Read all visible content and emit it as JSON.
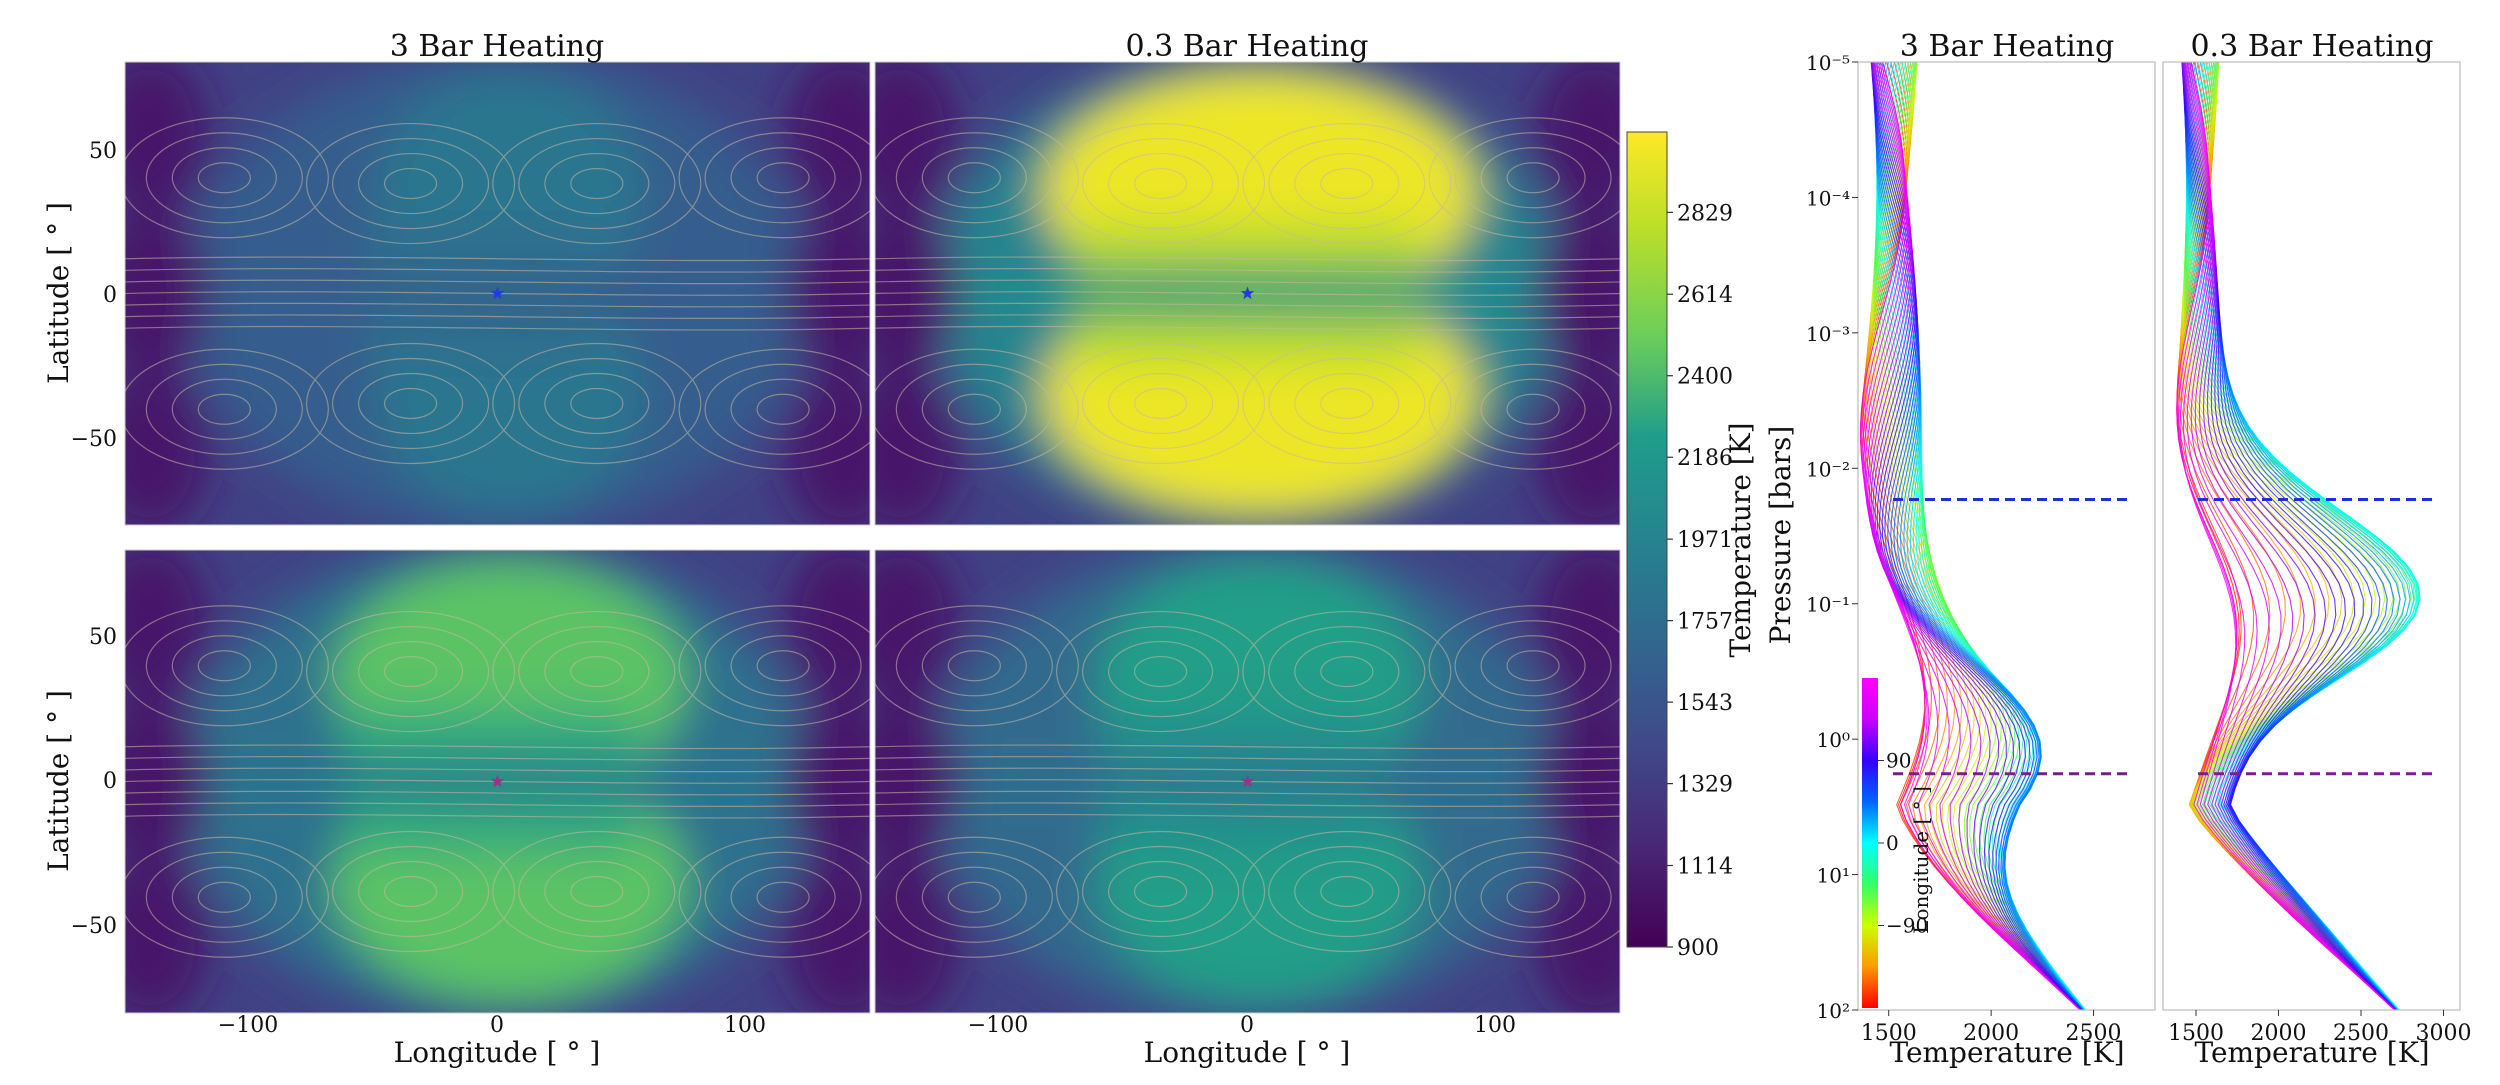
{
  "colors": {
    "viridis": [
      "#440154",
      "#482777",
      "#3f4a8a",
      "#31678e",
      "#26838f",
      "#1f9d8a",
      "#6cce5a",
      "#b6de2b",
      "#fee825"
    ],
    "rainbow_longitude": [
      "#ff0000",
      "#ff9900",
      "#ccff00",
      "#33ff66",
      "#00ffff",
      "#0066ff",
      "#3300ff",
      "#cc00ff",
      "#ff00ff"
    ],
    "dashed_upper": "#1f2de0",
    "dashed_lower": "#7a1f8a",
    "star_top": "#1f3de0",
    "star_bottom": "#a0308a"
  },
  "chart_data": [
    {
      "type": "heatmap",
      "title": "3 Bar Heating",
      "panel": "top-left",
      "ylabel": "Latitude [ ° ]",
      "xlim": [
        -150,
        150
      ],
      "ylim": [
        -80,
        80
      ],
      "yticks": [
        "50",
        "0",
        "−50"
      ],
      "hotspot_strength": 0.15,
      "substellar_point": [
        0,
        0
      ]
    },
    {
      "type": "heatmap",
      "title": "0.3 Bar Heating",
      "panel": "top-right",
      "xlim": [
        -150,
        150
      ],
      "ylim": [
        -80,
        80
      ],
      "hotspot_strength": 1.0,
      "substellar_point": [
        0,
        0
      ]
    },
    {
      "type": "heatmap",
      "panel": "bottom-left",
      "xlabel": "Longitude [ ° ]",
      "ylabel": "Latitude [ ° ]",
      "xlim": [
        -150,
        150
      ],
      "ylim": [
        -80,
        80
      ],
      "xticks": [
        "−100",
        "0",
        "100"
      ],
      "yticks": [
        "50",
        "0",
        "−50"
      ],
      "hotspot_strength": 0.6,
      "substellar_point": [
        0,
        0
      ]
    },
    {
      "type": "heatmap",
      "panel": "bottom-right",
      "xlabel": "Longitude [ ° ]",
      "xlim": [
        -150,
        150
      ],
      "ylim": [
        -80,
        80
      ],
      "xticks": [
        "−100",
        "0",
        "100"
      ],
      "hotspot_strength": 0.45,
      "substellar_point": [
        0,
        0
      ]
    },
    {
      "type": "colorbar",
      "label": "Temperature [K]",
      "range": [
        900,
        3040
      ],
      "ticks": [
        "2829",
        "2614",
        "2400",
        "2186",
        "1971",
        "1757",
        "1543",
        "1329",
        "1114",
        "900"
      ],
      "tick_values": [
        2829,
        2614,
        2400,
        2186,
        1971,
        1757,
        1543,
        1329,
        1114,
        900
      ]
    },
    {
      "type": "line",
      "title": "3 Bar Heating",
      "panel": "profiles-left",
      "xlabel": "Temperature [K]",
      "ylabel": "Pressure [bars]",
      "xlim": [
        1350,
        2800
      ],
      "xticks": [
        "1500",
        "2000",
        "2500"
      ],
      "y_scale": "log",
      "ylim_bars": [
        100,
        1e-05
      ],
      "yticks": [
        "10⁻⁵",
        "10⁻⁴",
        "10⁻³",
        "10⁻²",
        "10⁻¹",
        "10⁰",
        "10¹",
        "10²"
      ],
      "dashed_lines_bars": [
        0.017,
        1.8
      ],
      "profile_peak_temperature": 2400,
      "profile_peak_pressure_bars": 1.0
    },
    {
      "type": "line",
      "title": "0.3 Bar Heating",
      "panel": "profiles-right",
      "xlabel": "Temperature [K]",
      "xlim": [
        1300,
        3100
      ],
      "xticks": [
        "1500",
        "2000",
        "2500",
        "3000"
      ],
      "y_scale": "log",
      "ylim_bars": [
        100,
        1e-05
      ],
      "dashed_lines_bars": [
        0.017,
        1.8
      ],
      "profile_peak_temperature": 3000,
      "profile_peak_pressure_bars": 0.1
    },
    {
      "type": "colorbar",
      "label": "Longitude [ ° ]",
      "range": [
        -180,
        180
      ],
      "ticks": [
        "90",
        "0",
        "−90"
      ],
      "tick_values": [
        90,
        0,
        -90
      ]
    }
  ]
}
